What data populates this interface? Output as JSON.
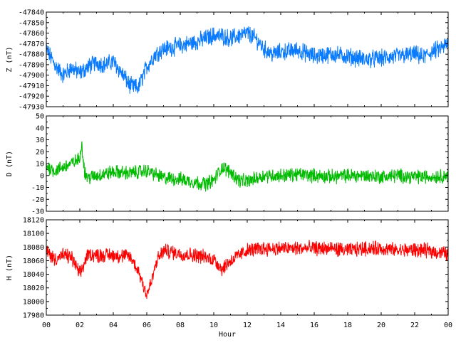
{
  "chart_data": [
    {
      "type": "line",
      "ylabel": "Z (nT)",
      "ylim": [
        -47930,
        -47840
      ],
      "yticks": [
        -47840,
        -47850,
        -47860,
        -47870,
        -47880,
        -47890,
        -47900,
        -47910,
        -47920,
        -47930
      ],
      "color": "#0a7bff",
      "noise": 7,
      "series": [
        {
          "x": [
            0,
            0.5,
            1,
            1.5,
            2,
            2.5,
            3,
            3.5,
            4,
            4.5,
            5,
            5.5,
            5.8,
            6,
            6.5,
            7,
            8,
            9,
            10,
            10.5,
            11,
            12,
            12.5,
            13,
            13.5,
            14,
            15,
            16,
            17,
            18,
            19,
            20,
            21,
            22,
            22.5,
            23,
            23.5,
            24
          ],
          "values": [
            -47875,
            -47890,
            -47900,
            -47893,
            -47898,
            -47892,
            -47888,
            -47890,
            -47887,
            -47898,
            -47910,
            -47912,
            -47900,
            -47892,
            -47880,
            -47875,
            -47872,
            -47868,
            -47862,
            -47863,
            -47865,
            -47860,
            -47865,
            -47875,
            -47880,
            -47878,
            -47876,
            -47882,
            -47880,
            -47882,
            -47885,
            -47884,
            -47882,
            -47880,
            -47883,
            -47878,
            -47875,
            -47870
          ]
        }
      ]
    },
    {
      "type": "line",
      "ylabel": "D (nT)",
      "ylim": [
        -30,
        50
      ],
      "yticks": [
        50,
        40,
        30,
        20,
        10,
        0,
        -10,
        -20,
        -30
      ],
      "color": "#00bb00",
      "noise": 5,
      "series": [
        {
          "x": [
            0,
            0.5,
            1,
            1.5,
            2,
            2.1,
            2.3,
            2.5,
            3,
            4,
            5,
            6,
            7,
            8,
            9,
            9.5,
            10,
            10.5,
            11,
            11.5,
            12,
            13,
            14,
            15,
            16,
            17,
            18,
            19,
            20,
            21,
            22,
            23,
            24
          ],
          "values": [
            8,
            4,
            7,
            10,
            14,
            28,
            2,
            -2,
            0,
            3,
            2,
            4,
            -2,
            -3,
            -6,
            -7,
            -4,
            7,
            3,
            -4,
            -5,
            0,
            0,
            1,
            0,
            -1,
            0,
            0,
            -1,
            0,
            -1,
            -1,
            0
          ]
        }
      ]
    },
    {
      "type": "line",
      "xlabel": "Hour",
      "ylabel": "H (nT)",
      "ylim": [
        17980,
        18120
      ],
      "yticks": [
        18120,
        18100,
        18080,
        18060,
        18040,
        18020,
        18000,
        17980
      ],
      "xlim": [
        0,
        24
      ],
      "xticks": [
        "00",
        "02",
        "04",
        "06",
        "08",
        "10",
        "12",
        "14",
        "16",
        "18",
        "20",
        "22",
        "00"
      ],
      "color": "#ff0000",
      "noise": 9,
      "series": [
        {
          "x": [
            0,
            0.5,
            1,
            1.5,
            2,
            2.5,
            3,
            4,
            5,
            5.5,
            6,
            6.3,
            6.6,
            7,
            8,
            9,
            10,
            10.5,
            11,
            12,
            13,
            14,
            15,
            16,
            17,
            18,
            19,
            20,
            21,
            22,
            23,
            24
          ],
          "values": [
            18075,
            18062,
            18068,
            18065,
            18040,
            18070,
            18068,
            18068,
            18066,
            18045,
            18010,
            18030,
            18060,
            18075,
            18070,
            18068,
            18062,
            18048,
            18060,
            18075,
            18078,
            18078,
            18078,
            18078,
            18078,
            18075,
            18078,
            18078,
            18075,
            18076,
            18074,
            18070
          ]
        }
      ]
    }
  ]
}
